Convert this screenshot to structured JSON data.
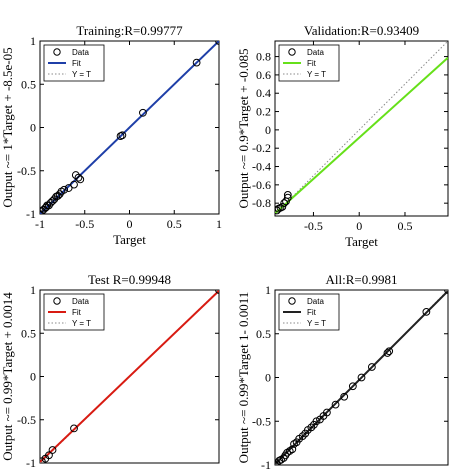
{
  "colors": {
    "training_fit": "#1f3fa8",
    "validation_fit": "#66e01a",
    "test_fit": "#d81b12",
    "all_fit": "#222222",
    "identity": "#8a8a8a",
    "data_marker": "#000000"
  },
  "icons": {
    "data_marker": "open-circle-icon"
  },
  "chart_data": [
    {
      "type": "scatter",
      "title": "Training:R=0.99777",
      "xlabel": "Target",
      "ylabel": "Output ~= 1*Target + -8.5e-05",
      "xlim": [
        -1,
        1
      ],
      "ylim": [
        -1,
        1
      ],
      "x_ticks": [
        "-1",
        "-0.5",
        "0",
        "0.5",
        "1"
      ],
      "y_ticks": [
        "-1",
        "-0.5",
        "0",
        "0.5",
        "1"
      ],
      "grid": false,
      "legend": {
        "position": "top-left",
        "entries": [
          "Data",
          "Fit",
          "Y = T"
        ]
      },
      "fit": {
        "slope": 1.0,
        "intercept": -8.5e-05
      },
      "series": [
        {
          "name": "Data",
          "points": [
            [
              -1,
              -1
            ],
            [
              -0.98,
              -0.97
            ],
            [
              -0.96,
              -0.95
            ],
            [
              -0.94,
              -0.93
            ],
            [
              -0.93,
              -0.92
            ],
            [
              -0.92,
              -0.9
            ],
            [
              -0.9,
              -0.9
            ],
            [
              -0.88,
              -0.87
            ],
            [
              -0.86,
              -0.85
            ],
            [
              -0.84,
              -0.83
            ],
            [
              -0.82,
              -0.8
            ],
            [
              -0.8,
              -0.79
            ],
            [
              -0.78,
              -0.77
            ],
            [
              -0.76,
              -0.74
            ],
            [
              -0.73,
              -0.72
            ],
            [
              -0.68,
              -0.7
            ],
            [
              -0.62,
              -0.66
            ],
            [
              -0.6,
              -0.55
            ],
            [
              -0.57,
              -0.58
            ],
            [
              -0.55,
              -0.6
            ],
            [
              -0.1,
              -0.1
            ],
            [
              -0.08,
              -0.09
            ],
            [
              0.15,
              0.17
            ],
            [
              0.75,
              0.75
            ],
            [
              1,
              1
            ]
          ]
        }
      ]
    },
    {
      "type": "scatter",
      "title": "Validation:R=0.93409",
      "xlabel": "Target",
      "ylabel": "Output ~= 0.9*Target + -0.085",
      "xlim": [
        -0.92,
        0.97
      ],
      "ylim": [
        -0.94,
        0.97
      ],
      "x_ticks": [
        "-0.5",
        "0",
        "0.5"
      ],
      "y_ticks": [
        "-0.8",
        "-0.6",
        "-0.4",
        "-0.2",
        "0",
        "0.2",
        "0.4",
        "0.6",
        "0.8"
      ],
      "grid": false,
      "legend": {
        "position": "top-left",
        "entries": [
          "Data",
          "Fit",
          "Y = T"
        ]
      },
      "fit": {
        "slope": 0.9,
        "intercept": -0.085
      },
      "series": [
        {
          "name": "Data",
          "points": [
            [
              -0.9,
              -0.88
            ],
            [
              -0.88,
              -0.86
            ],
            [
              -0.86,
              -0.85
            ],
            [
              -0.84,
              -0.84
            ],
            [
              -0.82,
              -0.8
            ],
            [
              -0.8,
              -0.78
            ],
            [
              -0.78,
              -0.74
            ],
            [
              -0.78,
              -0.71
            ]
          ]
        }
      ]
    },
    {
      "type": "scatter",
      "title": "Test R=0.99948",
      "xlabel": "",
      "ylabel": "Output ~= 0.99*Target + 0.0014",
      "xlim": [
        -1,
        1
      ],
      "ylim": [
        -1,
        1
      ],
      "x_ticks": [],
      "y_ticks": [
        "-1",
        "-0.5",
        "0",
        "0.5",
        "1"
      ],
      "grid": false,
      "legend": {
        "position": "top-left",
        "entries": [
          "Data",
          "Fit",
          "Y = T"
        ]
      },
      "fit": {
        "slope": 0.99,
        "intercept": 0.0014
      },
      "series": [
        {
          "name": "Data",
          "points": [
            [
              -0.98,
              -0.98
            ],
            [
              -0.94,
              -0.95
            ],
            [
              -0.9,
              -0.91
            ],
            [
              -0.86,
              -0.85
            ],
            [
              -0.62,
              -0.6
            ],
            [
              1,
              1
            ]
          ]
        }
      ]
    },
    {
      "type": "scatter",
      "title": "All:R=0.9981",
      "xlabel": "",
      "ylabel": "Output ~= 0.99*Target 1- 0.0011",
      "xlim": [
        -1,
        1
      ],
      "ylim": [
        -1,
        1
      ],
      "x_ticks": [],
      "y_ticks": [
        "-1",
        "-0.5",
        "0",
        "0.5",
        "1"
      ],
      "grid": false,
      "legend": {
        "position": "top-left",
        "entries": [
          "Data",
          "Fit",
          "Y = T"
        ]
      },
      "fit": {
        "slope": 0.99,
        "intercept": -0.0011
      },
      "series": [
        {
          "name": "Data",
          "points": [
            [
              -1,
              -1
            ],
            [
              -0.98,
              -0.98
            ],
            [
              -0.95,
              -0.95
            ],
            [
              -0.93,
              -0.94
            ],
            [
              -0.9,
              -0.92
            ],
            [
              -0.88,
              -0.89
            ],
            [
              -0.86,
              -0.86
            ],
            [
              -0.83,
              -0.84
            ],
            [
              -0.8,
              -0.82
            ],
            [
              -0.78,
              -0.76
            ],
            [
              -0.75,
              -0.74
            ],
            [
              -0.72,
              -0.7
            ],
            [
              -0.68,
              -0.67
            ],
            [
              -0.65,
              -0.64
            ],
            [
              -0.62,
              -0.6
            ],
            [
              -0.58,
              -0.57
            ],
            [
              -0.55,
              -0.54
            ],
            [
              -0.52,
              -0.5
            ],
            [
              -0.48,
              -0.48
            ],
            [
              -0.44,
              -0.44
            ],
            [
              -0.4,
              -0.4
            ],
            [
              -0.3,
              -0.31
            ],
            [
              -0.2,
              -0.22
            ],
            [
              -0.1,
              -0.1
            ],
            [
              0.0,
              0.0
            ],
            [
              0.12,
              0.12
            ],
            [
              0.3,
              0.28
            ],
            [
              0.32,
              0.3
            ],
            [
              0.75,
              0.75
            ],
            [
              1,
              1
            ]
          ]
        }
      ]
    }
  ]
}
